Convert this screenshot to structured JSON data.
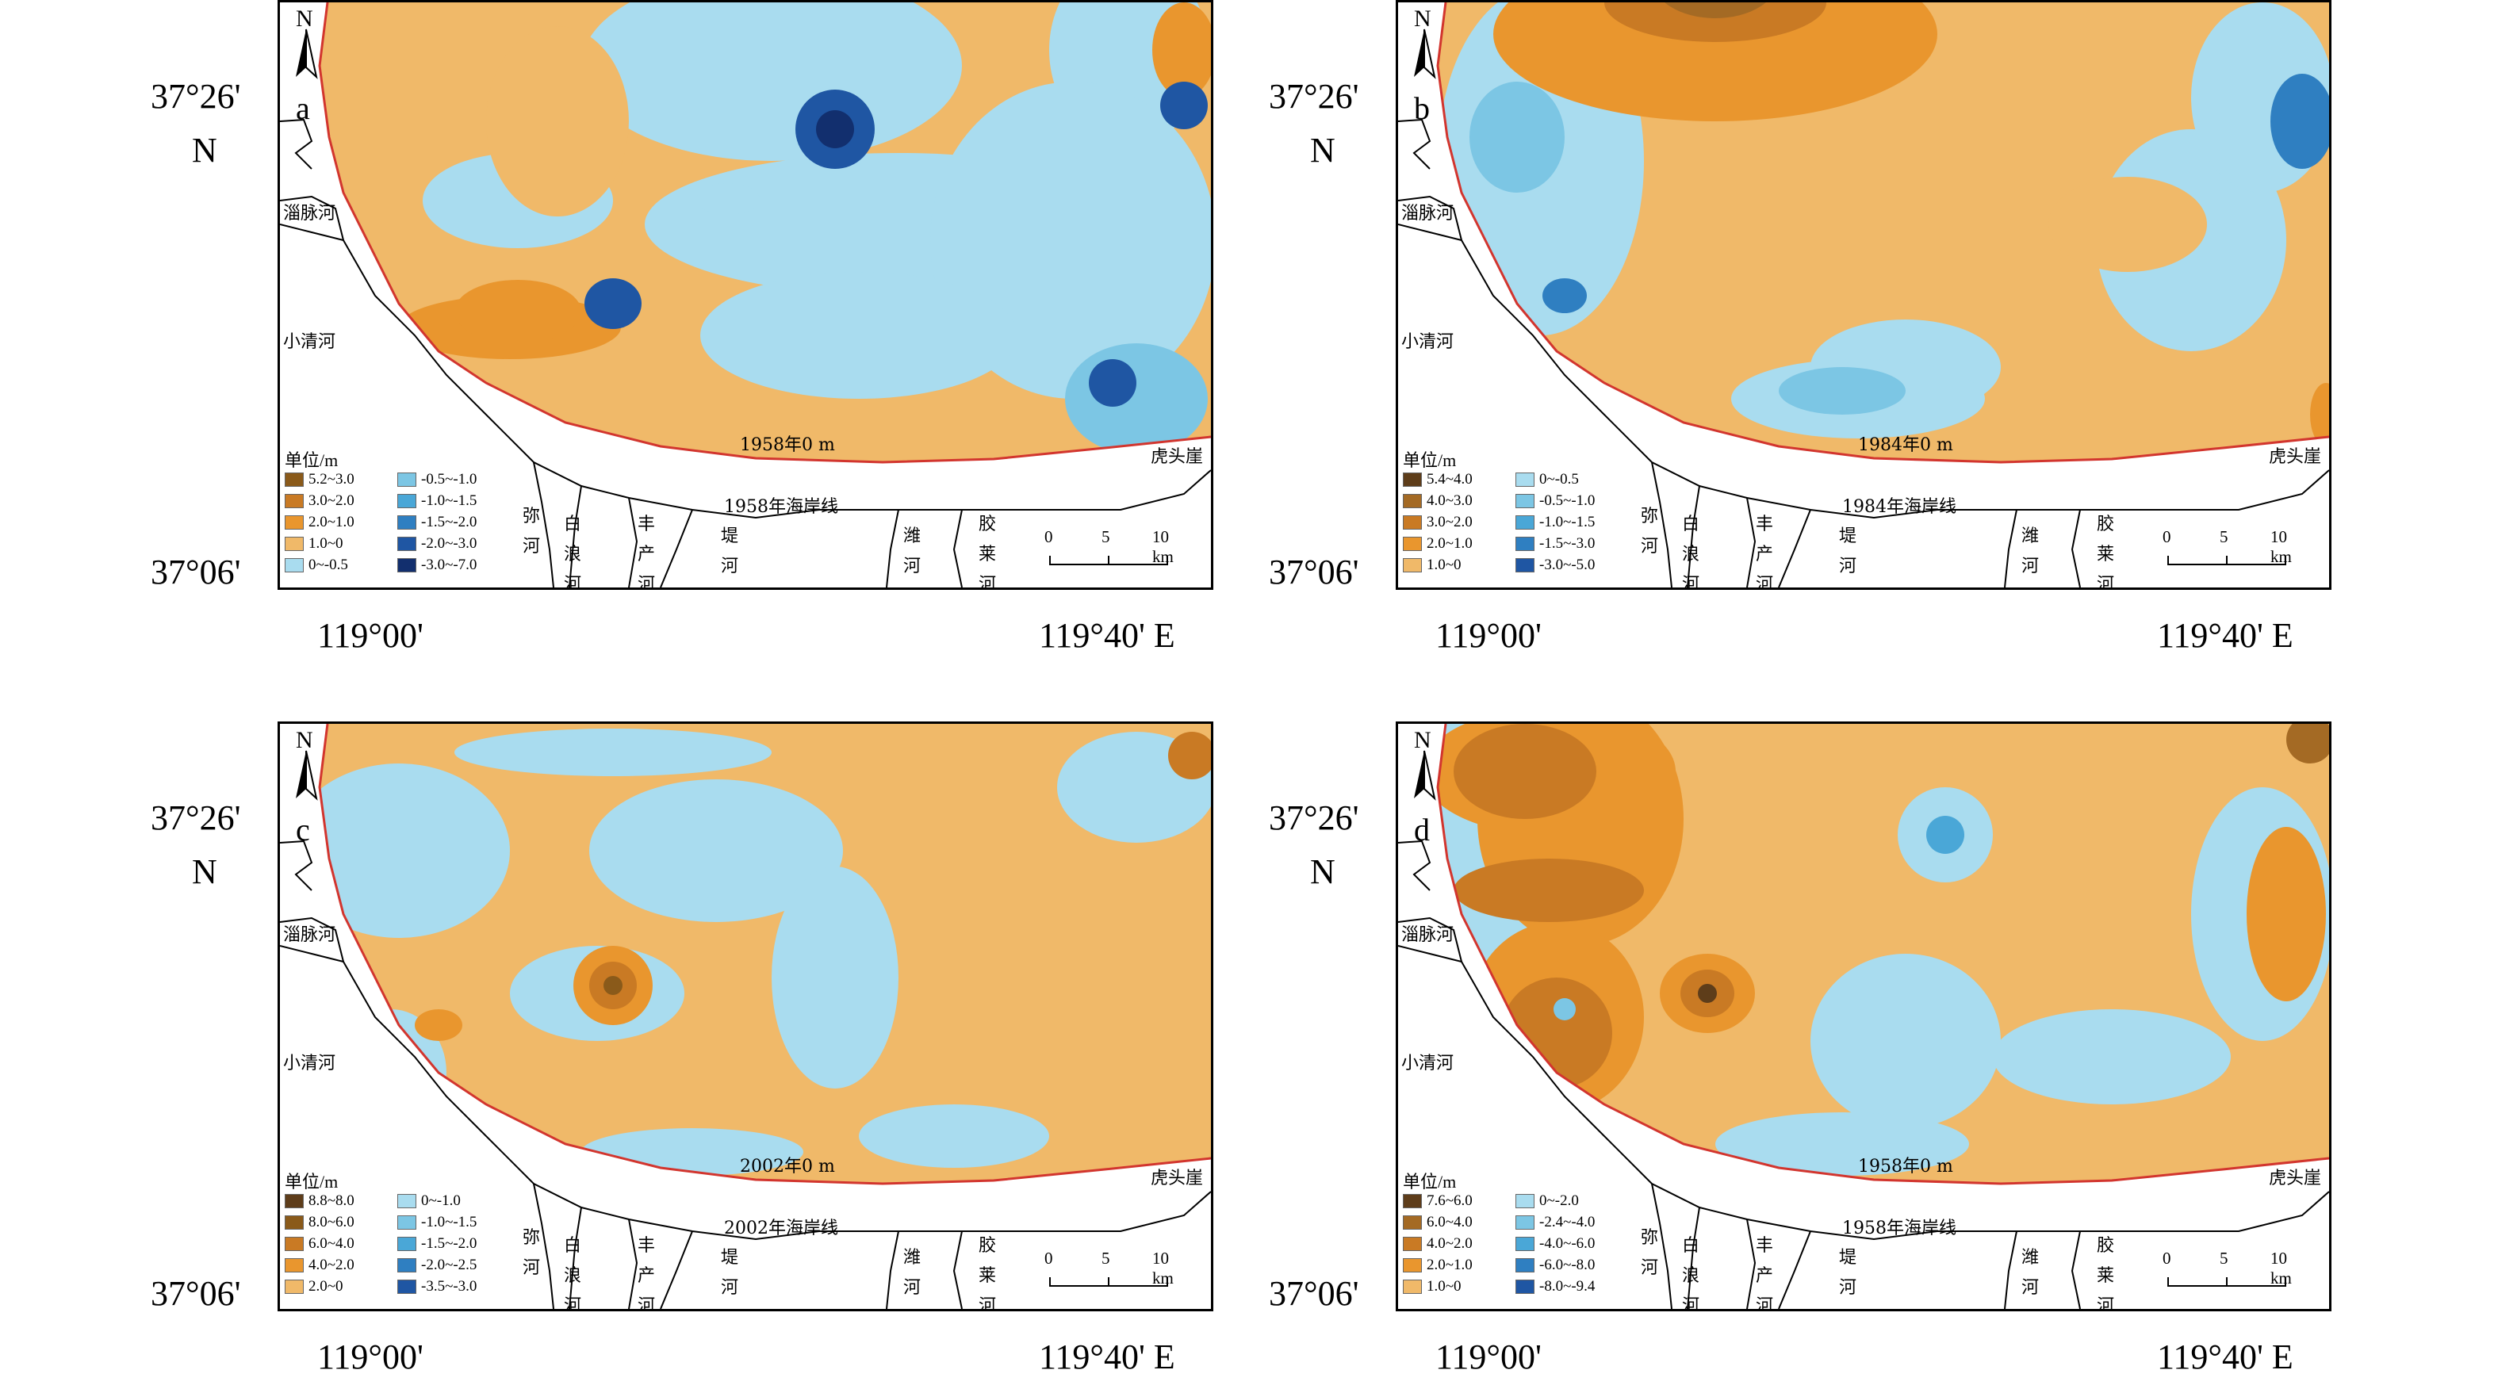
{
  "axes": {
    "lat_top": "37°26'",
    "lat_n": "N",
    "lat_bottom": "37°06'",
    "lon_left": "119°00'",
    "lon_right": "119°40' E"
  },
  "map_labels": {
    "north": "N",
    "zimai": "淄脉河",
    "xiaoqing": "小清河",
    "hutou": "虎头崖",
    "mi": "弥河",
    "bailang": "白浪河",
    "fengchan": "丰产河",
    "di": "堤河",
    "wei": "潍河",
    "jiaolai": "胶莱河",
    "unit": "单位/m",
    "scale_0": "0",
    "scale_5": "5",
    "scale_10": "10 km"
  },
  "panels": [
    {
      "id": "a",
      "letter": "a",
      "zero_line_label": "1958年0 m",
      "coastline_label": "1958年海岸线",
      "legend_left": [
        {
          "label": "5.2~3.0",
          "color": "#8a5a1a"
        },
        {
          "label": "3.0~2.0",
          "color": "#c97a24"
        },
        {
          "label": "2.0~1.0",
          "color": "#e9962e"
        },
        {
          "label": "1.0~0",
          "color": "#f0b969"
        },
        {
          "label": "0~-0.5",
          "color": "#a9dcef"
        }
      ],
      "legend_right": [
        {
          "label": "-0.5~-1.0",
          "color": "#7cc6e4"
        },
        {
          "label": "-1.0~-1.5",
          "color": "#4aa7d7"
        },
        {
          "label": "-1.5~-2.0",
          "color": "#2f7fc1"
        },
        {
          "label": "-2.0~-3.0",
          "color": "#1f56a3"
        },
        {
          "label": "-3.0~-7.0",
          "color": "#122f6e"
        }
      ]
    },
    {
      "id": "b",
      "letter": "b",
      "zero_line_label": "1984年0 m",
      "coastline_label": "1984年海岸线",
      "legend_left": [
        {
          "label": "5.4~4.0",
          "color": "#5e3d1a"
        },
        {
          "label": "4.0~3.0",
          "color": "#a46a24"
        },
        {
          "label": "3.0~2.0",
          "color": "#c97a24"
        },
        {
          "label": "2.0~1.0",
          "color": "#e9962e"
        },
        {
          "label": "1.0~0",
          "color": "#f0b969"
        }
      ],
      "legend_right": [
        {
          "label": "0~-0.5",
          "color": "#a9dcef"
        },
        {
          "label": "-0.5~-1.0",
          "color": "#7cc6e4"
        },
        {
          "label": "-1.0~-1.5",
          "color": "#4aa7d7"
        },
        {
          "label": "-1.5~-3.0",
          "color": "#2f7fc1"
        },
        {
          "label": "-3.0~-5.0",
          "color": "#1f56a3"
        }
      ]
    },
    {
      "id": "c",
      "letter": "c",
      "zero_line_label": "2002年0 m",
      "coastline_label": "2002年海岸线",
      "legend_left": [
        {
          "label": "8.8~8.0",
          "color": "#5e3d1a"
        },
        {
          "label": "8.0~6.0",
          "color": "#8a5a1a"
        },
        {
          "label": "6.0~4.0",
          "color": "#c97a24"
        },
        {
          "label": "4.0~2.0",
          "color": "#e9962e"
        },
        {
          "label": "2.0~0",
          "color": "#f0b969"
        }
      ],
      "legend_right": [
        {
          "label": "0~-1.0",
          "color": "#a9dcef"
        },
        {
          "label": "-1.0~-1.5",
          "color": "#7cc6e4"
        },
        {
          "label": "-1.5~-2.0",
          "color": "#4aa7d7"
        },
        {
          "label": "-2.0~-2.5",
          "color": "#2f7fc1"
        },
        {
          "label": "-3.5~-3.0",
          "color": "#1f56a3"
        }
      ]
    },
    {
      "id": "d",
      "letter": "d",
      "zero_line_label": "1958年0 m",
      "coastline_label": "1958年海岸线",
      "legend_left": [
        {
          "label": "7.6~6.0",
          "color": "#5e3d1a"
        },
        {
          "label": "6.0~4.0",
          "color": "#a46a24"
        },
        {
          "label": "4.0~2.0",
          "color": "#c97a24"
        },
        {
          "label": "2.0~1.0",
          "color": "#e9962e"
        },
        {
          "label": "1.0~0",
          "color": "#f0b969"
        }
      ],
      "legend_right": [
        {
          "label": "0~-2.0",
          "color": "#a9dcef"
        },
        {
          "label": "-2.4~-4.0",
          "color": "#7cc6e4"
        },
        {
          "label": "-4.0~-6.0",
          "color": "#4aa7d7"
        },
        {
          "label": "-6.0~-8.0",
          "color": "#2f7fc1"
        },
        {
          "label": "-8.0~-9.4",
          "color": "#1f56a3"
        }
      ]
    }
  ]
}
